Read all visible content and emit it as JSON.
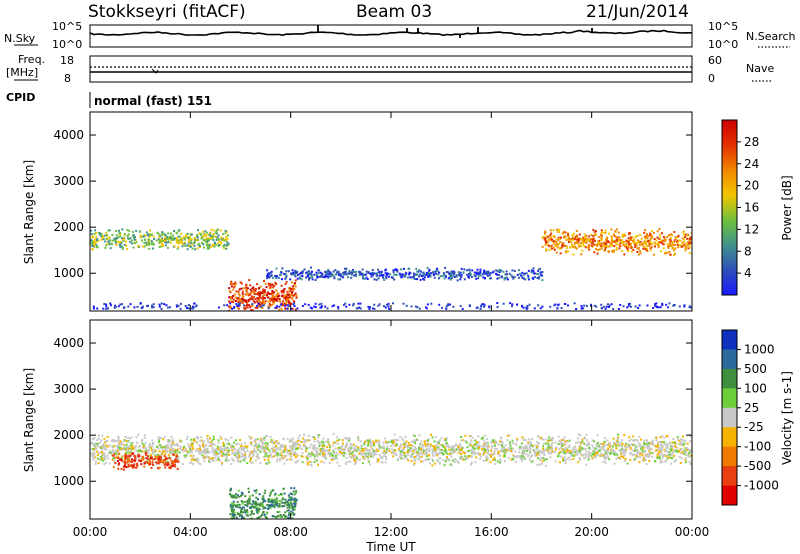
{
  "header": {
    "station": "Stokkseyri (fitACF)",
    "beam": "Beam 03",
    "date": "21/Jun/2014"
  },
  "noise_panel": {
    "left_label": "N.Sky",
    "right_label": "N.Search",
    "left_ticks": [
      "10^5",
      "10^0"
    ],
    "right_ticks": [
      "10^5",
      "10^0"
    ]
  },
  "freq_panel": {
    "left_label_1": "Freq.",
    "left_label_2": "[MHz]",
    "right_label": "Nave",
    "left_ticks": [
      "18",
      "8"
    ],
    "right_ticks": [
      "60",
      "0"
    ]
  },
  "cpid_panel": {
    "label": "CPID",
    "mode_text": "normal (fast) 151"
  },
  "x_axis": {
    "label": "Time UT",
    "ticks": [
      "00:00",
      "04:00",
      "08:00",
      "12:00",
      "16:00",
      "20:00",
      "00:00"
    ]
  },
  "chart_data": [
    {
      "type": "heatmap",
      "title": "Power",
      "ylabel": "Slant Range [km]",
      "xlabel": "Time UT",
      "ylim": [
        180,
        4500
      ],
      "yticks": [
        "1000",
        "2000",
        "3000",
        "4000"
      ],
      "colorbar": {
        "label": "Power [dB]",
        "ticks": [
          "4",
          "8",
          "12",
          "16",
          "20",
          "24",
          "28"
        ],
        "colors": [
          "#1a1aff",
          "#2f4fb8",
          "#3f9090",
          "#6bbf3f",
          "#f2c500",
          "#f08a00",
          "#e63300",
          "#cc0000"
        ]
      },
      "data_regions": [
        {
          "name": "band-1700",
          "t_start": 0,
          "t_end": 5.5,
          "r_center": 1750,
          "r_width": 250,
          "level": 3
        },
        {
          "name": "band-1700-late",
          "t_start": 18,
          "t_end": 24,
          "r_center": 1700,
          "r_width": 300,
          "level": 5
        },
        {
          "name": "band-1000",
          "t_start": 7,
          "t_end": 18,
          "r_center": 1000,
          "r_width": 150,
          "level": 1
        },
        {
          "name": "near-range-event",
          "t_start": 5.5,
          "t_end": 8.2,
          "r_center": 500,
          "r_width": 400,
          "level": 6
        }
      ]
    },
    {
      "type": "heatmap",
      "title": "Velocity",
      "ylabel": "Slant Range [km]",
      "xlabel": "Time UT",
      "ylim": [
        180,
        4500
      ],
      "yticks": [
        "1000",
        "2000",
        "3000",
        "4000"
      ],
      "colorbar": {
        "label": "Velocity [m s-1]",
        "ticks": [
          "1000",
          "500",
          "100",
          "25",
          "-25",
          "-100",
          "-500",
          "-1000"
        ],
        "colors": [
          "#1030c0",
          "#2a6b9c",
          "#3f8f3f",
          "#6ccf3a",
          "#c8c8c8",
          "#f5b300",
          "#f07a00",
          "#e84010",
          "#e00000"
        ]
      },
      "data_regions": [
        {
          "name": "ground-scatter-band",
          "t_start": 0,
          "t_end": 24,
          "r_center": 1700,
          "r_width": 350,
          "level": 0
        },
        {
          "name": "negative-velocity-patch",
          "t_start": 0.8,
          "t_end": 3.5,
          "r_center": 1450,
          "r_width": 200,
          "level": -500
        },
        {
          "name": "positive-velocity-event",
          "t_start": 5.5,
          "t_end": 8.2,
          "r_center": 500,
          "r_width": 400,
          "level": 100
        }
      ]
    }
  ]
}
